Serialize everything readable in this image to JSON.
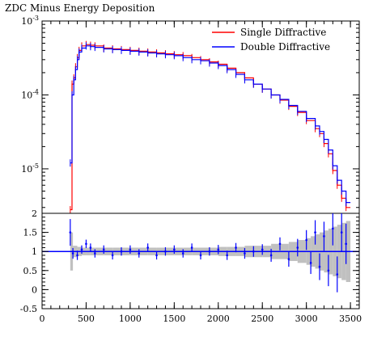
{
  "chart_data": [
    {
      "type": "line",
      "title": "ZDC Minus Energy Deposition",
      "xlabel": "",
      "ylabel": "",
      "y_scale": "log",
      "ylim": [
        2.5e-06,
        0.001
      ],
      "xlim": [
        0,
        3600
      ],
      "y_tick_labels": [
        "10^-5",
        "10^-4",
        "10^-3"
      ],
      "y_tick_values": [
        1e-05,
        0.0001,
        0.001
      ],
      "legend_placement": "top-right",
      "grid": false,
      "series": [
        {
          "name": "Single Diffractive",
          "color": "#ff0000",
          "x": [
            320,
            340,
            360,
            380,
            400,
            420,
            450,
            500,
            550,
            600,
            700,
            800,
            900,
            1000,
            1100,
            1200,
            1300,
            1400,
            1500,
            1600,
            1700,
            1800,
            1900,
            2000,
            2100,
            2200,
            2300,
            2400,
            2500,
            2600,
            2700,
            2800,
            2900,
            3000,
            3100,
            3150,
            3200,
            3250,
            3300,
            3350,
            3400,
            3450
          ],
          "y": [
            2.8e-06,
            0.00014,
            0.00017,
            0.00024,
            0.00032,
            0.0004,
            0.00046,
            0.00048,
            0.00047,
            0.00046,
            0.00043,
            0.00042,
            0.00041,
            0.0004,
            0.00039,
            0.00038,
            0.00037,
            0.00036,
            0.00035,
            0.00034,
            0.00032,
            0.0003,
            0.00028,
            0.00026,
            0.00023,
            0.0002,
            0.00017,
            0.00014,
            0.00012,
            0.0001,
            8.5e-05,
            7e-05,
            5.8e-05,
            4.5e-05,
            3.5e-05,
            3e-05,
            2.2e-05,
            1.6e-05,
            9.5e-06,
            6e-06,
            4e-06,
            3e-06
          ]
        },
        {
          "name": "Double Diffractive",
          "color": "#0000ff",
          "x": [
            320,
            340,
            360,
            380,
            400,
            420,
            450,
            500,
            550,
            600,
            700,
            800,
            900,
            1000,
            1100,
            1200,
            1300,
            1400,
            1500,
            1600,
            1700,
            1800,
            1900,
            2000,
            2100,
            2200,
            2300,
            2400,
            2500,
            2600,
            2700,
            2800,
            2900,
            3000,
            3100,
            3150,
            3200,
            3250,
            3300,
            3350,
            3400,
            3450
          ],
          "y": [
            1.2e-05,
            0.0001,
            0.00016,
            0.00022,
            0.0003,
            0.00038,
            0.00043,
            0.00046,
            0.00045,
            0.00044,
            0.00042,
            0.00041,
            0.0004,
            0.00039,
            0.00038,
            0.00037,
            0.00036,
            0.00035,
            0.00034,
            0.00032,
            0.0003,
            0.00029,
            0.00027,
            0.00025,
            0.00022,
            0.00019,
            0.00016,
            0.00014,
            0.00012,
            0.0001,
            8.7e-05,
            7.2e-05,
            6e-05,
            4.8e-05,
            3.8e-05,
            3.2e-05,
            2.5e-05,
            1.8e-05,
            1.1e-05,
            7e-06,
            5e-06,
            3.5e-06
          ]
        }
      ]
    },
    {
      "type": "scatter",
      "title": "",
      "xlabel": "",
      "ylabel": "",
      "xlim": [
        0,
        3600
      ],
      "ylim": [
        -0.5,
        2
      ],
      "x_tick_labels": [
        "0",
        "500",
        "1000",
        "1500",
        "2000",
        "2500",
        "3000",
        "3500"
      ],
      "y_tick_labels": [
        "-0.5",
        "0",
        "0.5",
        "1",
        "1.5",
        "2"
      ],
      "reference_line": 1,
      "grid": false,
      "series": [
        {
          "name": "",
          "color": "#0000ff",
          "x": [
            320,
            350,
            400,
            450,
            500,
            550,
            600,
            700,
            800,
            900,
            1000,
            1100,
            1200,
            1300,
            1400,
            1500,
            1600,
            1700,
            1800,
            1900,
            2000,
            2100,
            2200,
            2300,
            2400,
            2500,
            2600,
            2700,
            2800,
            2900,
            3000,
            3050,
            3100,
            3150,
            3200,
            3250,
            3300,
            3350,
            3400,
            3450
          ],
          "y": [
            1.5,
            0.95,
            0.9,
            1.05,
            1.2,
            1.1,
            0.95,
            1.05,
            0.9,
            1.0,
            1.05,
            0.95,
            1.1,
            0.9,
            1.0,
            1.05,
            0.95,
            1.1,
            0.9,
            1.0,
            1.05,
            0.9,
            1.1,
            0.95,
            1.0,
            1.05,
            0.9,
            1.2,
            0.8,
            1.1,
            1.3,
            0.7,
            1.5,
            0.6,
            1.4,
            0.5,
            1.6,
            0.4,
            1.5,
            1.2
          ],
          "yerr": [
            0.5,
            0.15,
            0.12,
            0.1,
            0.1,
            0.1,
            0.1,
            0.1,
            0.1,
            0.1,
            0.1,
            0.1,
            0.1,
            0.1,
            0.1,
            0.1,
            0.1,
            0.1,
            0.1,
            0.1,
            0.12,
            0.12,
            0.12,
            0.15,
            0.15,
            0.15,
            0.2,
            0.2,
            0.25,
            0.3,
            0.35,
            0.4,
            0.45,
            0.5,
            0.55,
            0.6,
            0.65,
            0.7,
            0.75,
            0.8
          ]
        }
      ]
    }
  ]
}
